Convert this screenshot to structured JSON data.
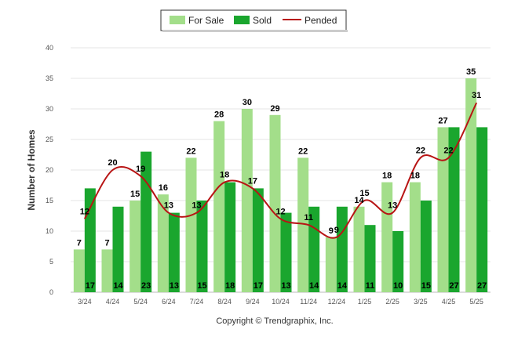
{
  "chart_data": {
    "type": "bar",
    "categories": [
      "3/24",
      "4/24",
      "5/24",
      "6/24",
      "7/24",
      "8/24",
      "9/24",
      "10/24",
      "11/24",
      "12/24",
      "1/25",
      "2/25",
      "3/25",
      "4/25",
      "5/25"
    ],
    "series": [
      {
        "name": "For Sale",
        "type": "bar",
        "color": "#a3de8a",
        "values": [
          7,
          7,
          15,
          16,
          22,
          28,
          30,
          29,
          22,
          9,
          14,
          18,
          18,
          27,
          35
        ]
      },
      {
        "name": "Sold",
        "type": "bar",
        "color": "#1aa62e",
        "values": [
          17,
          14,
          23,
          13,
          15,
          18,
          17,
          13,
          14,
          14,
          11,
          10,
          15,
          27,
          27
        ]
      },
      {
        "name": "Pended",
        "type": "line",
        "color": "#b81414",
        "values": [
          12,
          20,
          19,
          13,
          13,
          18,
          17,
          12,
          11,
          9,
          15,
          13,
          22,
          22,
          31
        ]
      }
    ],
    "ylabel": "Number of Homes",
    "ylim": [
      0,
      40
    ],
    "yticks": [
      0,
      5,
      10,
      15,
      20,
      25,
      30,
      35,
      40
    ],
    "grid": true,
    "legend_position": "top-center",
    "footer": "Copyright © Trendgraphix, Inc."
  }
}
